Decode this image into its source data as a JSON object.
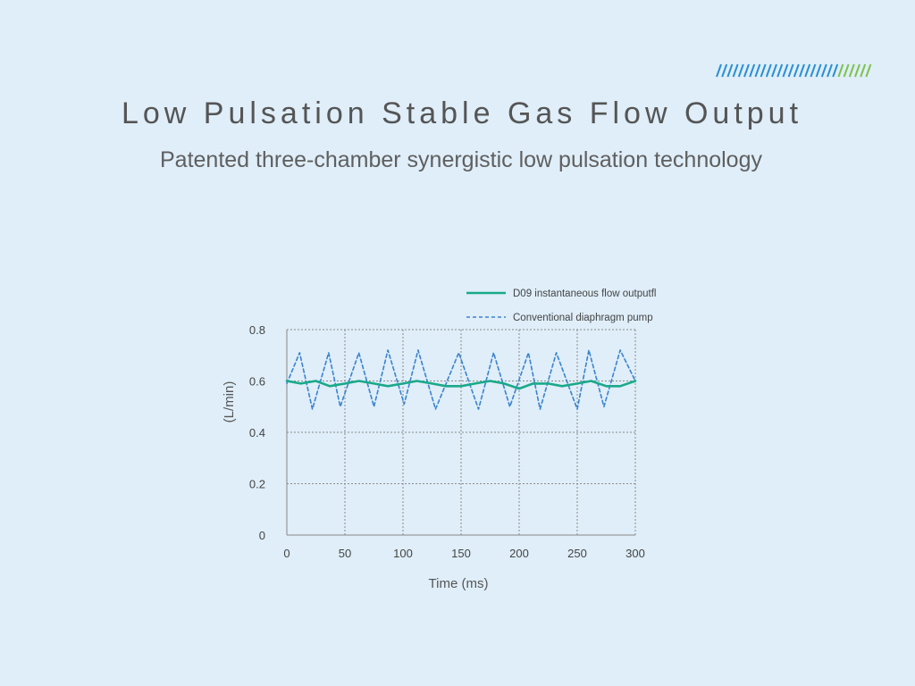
{
  "header": {
    "title": "Low Pulsation Stable Gas Flow Output",
    "subtitle": "Patented three-chamber synergistic low pulsation technology"
  },
  "decor": {
    "stripe_colors": [
      "#2a8fd6",
      "#7dc24b"
    ]
  },
  "chart_data": {
    "type": "line",
    "xlabel": "Time (ms)",
    "ylabel": "(L/min)",
    "xlim": [
      0,
      300
    ],
    "ylim": [
      0,
      0.8
    ],
    "xticks": [
      0,
      50,
      100,
      150,
      200,
      250,
      300
    ],
    "yticks": [
      0,
      0.2,
      0.4,
      0.6,
      0.8
    ],
    "grid": true,
    "legend_position": "top-right",
    "series": [
      {
        "name": "D09 instantaneous flow outputfl",
        "color": "#1aa98a",
        "style": "solid",
        "x": [
          0,
          12,
          25,
          37,
          50,
          62,
          75,
          87,
          100,
          112,
          125,
          137,
          150,
          162,
          175,
          187,
          200,
          212,
          225,
          237,
          250,
          262,
          275,
          287,
          300
        ],
        "y": [
          0.6,
          0.59,
          0.6,
          0.58,
          0.59,
          0.6,
          0.59,
          0.58,
          0.59,
          0.6,
          0.59,
          0.58,
          0.58,
          0.59,
          0.6,
          0.59,
          0.57,
          0.59,
          0.59,
          0.58,
          0.59,
          0.6,
          0.58,
          0.58,
          0.6
        ]
      },
      {
        "name": "Conventional diaphragm pump",
        "color": "#3a83d0",
        "style": "dashed",
        "x": [
          0,
          11,
          22,
          36,
          46,
          62,
          75,
          87,
          101,
          113,
          128,
          148,
          165,
          178,
          192,
          208,
          218,
          232,
          250,
          260,
          273,
          287,
          300
        ],
        "y": [
          0.59,
          0.71,
          0.49,
          0.71,
          0.5,
          0.71,
          0.5,
          0.72,
          0.51,
          0.72,
          0.49,
          0.71,
          0.49,
          0.71,
          0.5,
          0.71,
          0.49,
          0.71,
          0.49,
          0.72,
          0.5,
          0.72,
          0.6
        ]
      }
    ]
  }
}
